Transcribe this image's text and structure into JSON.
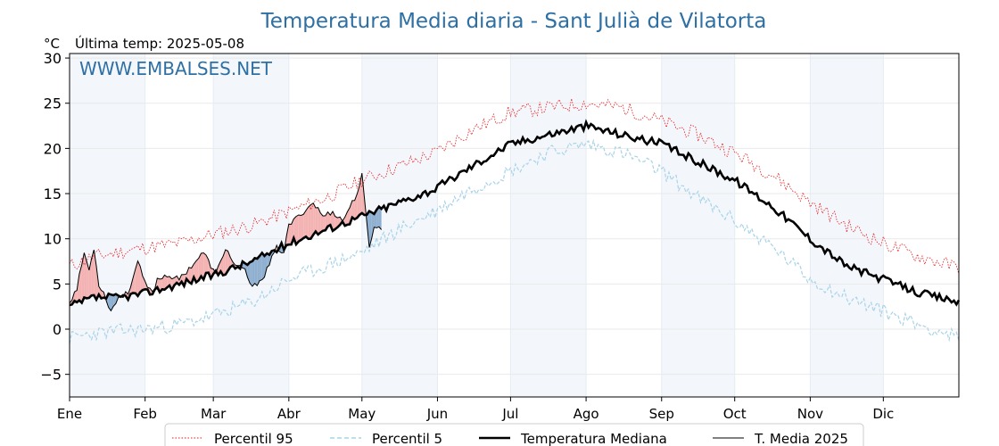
{
  "chart_data": {
    "type": "line",
    "title": "Temperatura Media diaria - Sant Julià de Vilatorta",
    "unit_label": "°C",
    "last_temp_label": "Última temp: 2025-05-08",
    "watermark": "WWW.EMBALSES.NET",
    "ylim": [
      -7.5,
      30.5
    ],
    "yticks": [
      -5,
      0,
      5,
      10,
      15,
      20,
      25,
      30
    ],
    "ytick_labels": [
      "−5",
      "0",
      "5",
      "10",
      "15",
      "20",
      "25",
      "30"
    ],
    "xlim": [
      0,
      365
    ],
    "months": [
      {
        "label": "Ene",
        "day": 0
      },
      {
        "label": "Feb",
        "day": 31
      },
      {
        "label": "Mar",
        "day": 59
      },
      {
        "label": "Abr",
        "day": 90
      },
      {
        "label": "May",
        "day": 120
      },
      {
        "label": "Jun",
        "day": 151
      },
      {
        "label": "Jul",
        "day": 181
      },
      {
        "label": "Ago",
        "day": 212
      },
      {
        "label": "Sep",
        "day": 243
      },
      {
        "label": "Oct",
        "day": 273
      },
      {
        "label": "Nov",
        "day": 304
      },
      {
        "label": "Dic",
        "day": 334
      }
    ],
    "shaded_months": [
      [
        0,
        31
      ],
      [
        59,
        90
      ],
      [
        120,
        151
      ],
      [
        181,
        212
      ],
      [
        243,
        273
      ],
      [
        304,
        334
      ]
    ],
    "grid": true,
    "legend_position": "bottom-center",
    "series": [
      {
        "name": "Percentil 95",
        "color": "#e8191b",
        "style": "dotted",
        "x": [
          0,
          10,
          20,
          31,
          45,
          59,
          75,
          90,
          105,
          120,
          135,
          150,
          165,
          181,
          196,
          212,
          227,
          243,
          258,
          273,
          289,
          304,
          319,
          334,
          349,
          365
        ],
        "y": [
          7.0,
          8.0,
          8.5,
          9.0,
          9.5,
          10.5,
          11.5,
          13.0,
          14.5,
          16.5,
          18.0,
          19.5,
          22.0,
          24.0,
          24.5,
          25.0,
          24.5,
          23.0,
          21.5,
          19.5,
          17.0,
          14.0,
          11.5,
          9.5,
          8.0,
          6.8
        ]
      },
      {
        "name": "Percentil 5",
        "color": "#a9d3e8",
        "style": "dashed",
        "x": [
          0,
          10,
          20,
          31,
          45,
          59,
          75,
          90,
          105,
          120,
          135,
          150,
          165,
          181,
          196,
          212,
          227,
          243,
          258,
          273,
          289,
          304,
          319,
          334,
          349,
          365
        ],
        "y": [
          -1.0,
          -0.5,
          -0.2,
          0.0,
          0.5,
          1.5,
          3.0,
          5.5,
          7.0,
          8.5,
          11.0,
          13.0,
          15.5,
          17.5,
          19.5,
          20.5,
          19.5,
          17.5,
          14.5,
          12.0,
          9.0,
          5.5,
          3.5,
          2.0,
          0.5,
          -1.0
        ]
      },
      {
        "name": "Temperatura Mediana",
        "color": "#000000",
        "style": "solid-thick",
        "x": [
          0,
          10,
          20,
          31,
          45,
          59,
          75,
          90,
          105,
          120,
          135,
          150,
          165,
          181,
          196,
          212,
          227,
          243,
          258,
          273,
          289,
          304,
          319,
          334,
          349,
          365
        ],
        "y": [
          2.5,
          3.5,
          3.5,
          4.0,
          5.0,
          6.0,
          7.5,
          9.5,
          11.0,
          12.5,
          14.0,
          15.5,
          18.0,
          20.5,
          21.5,
          22.5,
          21.5,
          20.5,
          18.5,
          16.5,
          13.5,
          10.0,
          7.0,
          5.5,
          4.0,
          3.0
        ]
      },
      {
        "name": "T. Media 2025",
        "color": "#000000",
        "style": "solid-thin",
        "x": [
          0,
          3,
          6,
          8,
          10,
          12,
          14,
          17,
          20,
          24,
          28,
          31,
          34,
          36,
          40,
          45,
          50,
          55,
          60,
          64,
          68,
          72,
          75,
          80,
          85,
          88,
          90,
          94,
          98,
          100,
          104,
          108,
          112,
          116,
          118,
          120,
          123,
          125,
          128
        ],
        "y": [
          3.0,
          4.5,
          8.5,
          6.5,
          9.0,
          5.0,
          4.0,
          2.0,
          3.5,
          4.0,
          7.5,
          5.0,
          4.0,
          5.5,
          6.0,
          5.5,
          7.0,
          8.5,
          6.0,
          9.0,
          7.0,
          6.5,
          4.5,
          6.0,
          9.0,
          8.5,
          11.5,
          12.5,
          13.5,
          14.0,
          12.5,
          13.0,
          12.0,
          14.0,
          15.0,
          17.0,
          9.0,
          11.5,
          11.0
        ]
      }
    ]
  }
}
